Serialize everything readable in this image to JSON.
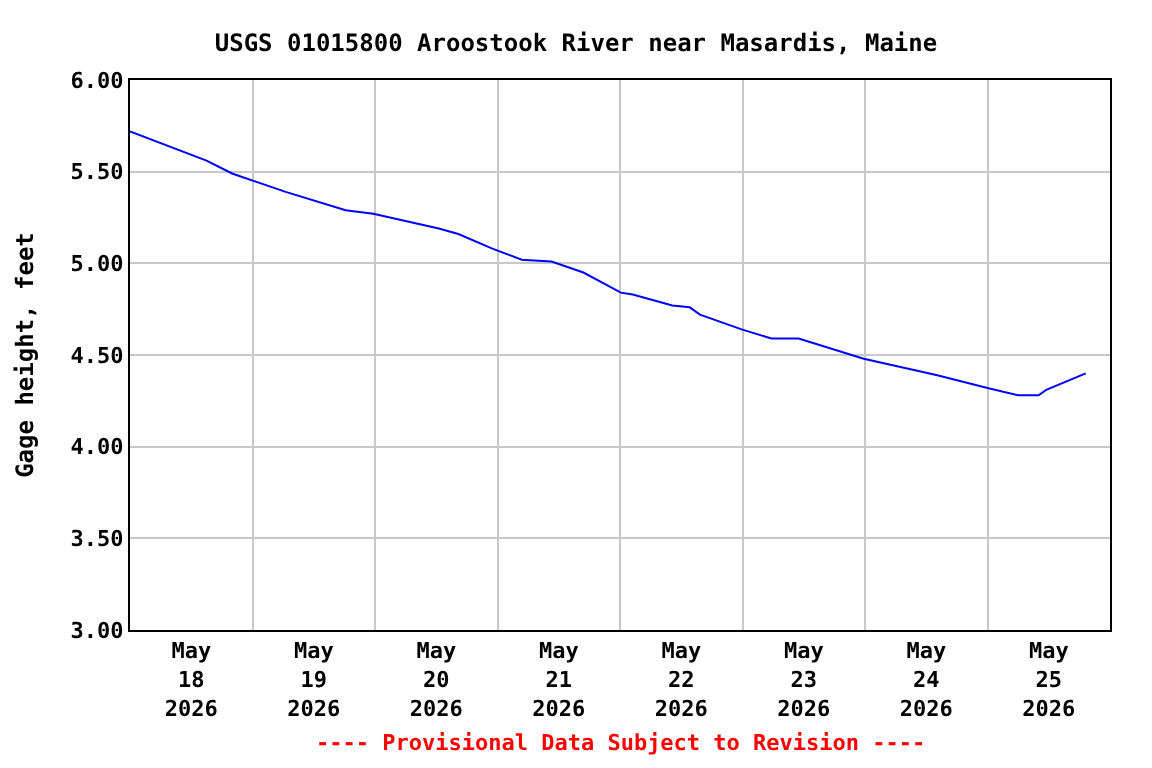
{
  "chart_data": {
    "type": "line",
    "title": "USGS 01015800 Aroostook River near Masardis, Maine",
    "ylabel": "Gage height, feet",
    "annotations": [
      "---- Provisional Data Subject to Revision ----"
    ],
    "x": [
      "2026-05-18T00:00",
      "2026-05-18T15:00",
      "2026-05-18T20:00",
      "2026-05-19T06:30",
      "2026-05-19T18:15",
      "2026-05-19T23:40",
      "2026-05-20T12:30",
      "2026-05-20T16:20",
      "2026-05-20T23:00",
      "2026-05-21T04:45",
      "2026-05-21T10:35",
      "2026-05-21T16:50",
      "2026-05-22T00:10",
      "2026-05-22T02:30",
      "2026-05-22T10:15",
      "2026-05-22T13:40",
      "2026-05-22T15:40",
      "2026-05-22T23:50",
      "2026-05-23T05:40",
      "2026-05-23T11:00",
      "2026-05-23T23:45",
      "2026-05-24T14:10",
      "2026-05-25T00:00",
      "2026-05-25T06:05",
      "2026-05-25T10:00",
      "2026-05-25T11:30",
      "2026-05-25T19:15"
    ],
    "series": [
      {
        "color": "#0000ff",
        "values": [
          5.72,
          5.56,
          5.49,
          5.39,
          5.29,
          5.27,
          5.19,
          5.16,
          5.08,
          5.02,
          5.01,
          4.95,
          4.84,
          4.83,
          4.77,
          4.76,
          4.72,
          4.64,
          4.59,
          4.59,
          4.48,
          4.39,
          4.32,
          4.28,
          4.28,
          4.31,
          4.4
        ]
      }
    ],
    "xlim": [
      "2026-05-18T00:00",
      "2026-05-26T00:00"
    ],
    "xticks": [
      {
        "value": "2026-05-18T12:00",
        "label": "May\n18\n2026"
      },
      {
        "value": "2026-05-19T00:00",
        "label": null
      },
      {
        "value": "2026-05-19T12:00",
        "label": "May\n19\n2026"
      },
      {
        "value": "2026-05-20T00:00",
        "label": null
      },
      {
        "value": "2026-05-20T12:00",
        "label": "May\n20\n2026"
      },
      {
        "value": "2026-05-21T00:00",
        "label": null
      },
      {
        "value": "2026-05-21T12:00",
        "label": "May\n21\n2026"
      },
      {
        "value": "2026-05-22T00:00",
        "label": null
      },
      {
        "value": "2026-05-22T12:00",
        "label": "May\n22\n2026"
      },
      {
        "value": "2026-05-23T00:00",
        "label": null
      },
      {
        "value": "2026-05-23T12:00",
        "label": "May\n23\n2026"
      },
      {
        "value": "2026-05-24T00:00",
        "label": null
      },
      {
        "value": "2026-05-24T12:00",
        "label": "May\n24\n2026"
      },
      {
        "value": "2026-05-25T00:00",
        "label": null
      },
      {
        "value": "2026-05-25T12:00",
        "label": "May\n25\n2026"
      }
    ],
    "ylim": [
      3,
      6
    ],
    "yticks": [
      {
        "value": 3,
        "label": "3.00"
      },
      {
        "value": 3.5,
        "label": "3.50"
      },
      {
        "value": 4,
        "label": "4.00"
      },
      {
        "value": 4.5,
        "label": "4.50"
      },
      {
        "value": 5,
        "label": "5.00"
      },
      {
        "value": 5.5,
        "label": "5.50"
      },
      {
        "value": 6,
        "label": "6.00"
      }
    ],
    "grid": true,
    "marker": "none",
    "line_style": "solid"
  }
}
